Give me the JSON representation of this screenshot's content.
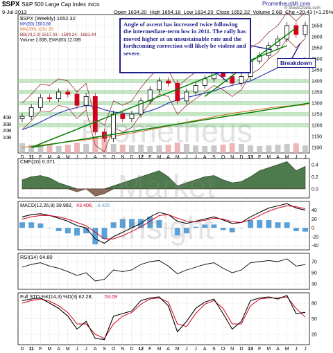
{
  "header": {
    "ticker": "$SPX",
    "name": "S&P 500 Large Cap Index",
    "exchange": "INDX",
    "date": "9-Jul-2013",
    "open_label": "Open",
    "open": "1634.20",
    "high_label": "High",
    "high": "1654.18",
    "low_label": "Low",
    "low": "1634.20",
    "close_label": "Close",
    "close": "1652.32",
    "volume_label": "Volume",
    "volume": "2.6B",
    "chg_label": "Chg",
    "chg": "+20.43 (+1.25%)",
    "site": "PrometheusMI.com",
    "credit": "© StockCharts.com"
  },
  "watermark": {
    "line1": "Prometheus",
    "line2": "Market",
    "line3": "Insight"
  },
  "colors": {
    "up": "#000000",
    "down": "#d0021b",
    "trend": "#008000",
    "ma50": "#1a2bb5",
    "ma200": "#d2691e",
    "bb": "#8b1a1a",
    "macd_hist": "#5aa0d8",
    "cmf_pos": "#4e7a4e",
    "cmf_neg": "#8a6a5a",
    "sto_d": "#d0021b",
    "band": "#8fd18f"
  },
  "price_panel": {
    "legend": [
      {
        "text": "$SPX (Weekly) 1652.32"
      },
      {
        "text": "MA(50) 1503.88",
        "color": "#1a2bb5"
      },
      {
        "text": "MA(200) 1291.25",
        "color": "#d2691e"
      },
      {
        "text": "BB(20,2.0) 1517.03 - 1599.24 - 1681.44",
        "color": "#8b1a1a"
      },
      {
        "text": "Volume 2.65B, EMA(60) 12.03B"
      }
    ],
    "y_ticks": [
      "1650",
      "1600",
      "1550",
      "1500",
      "1450",
      "1400",
      "1350",
      "1300",
      "1250",
      "1200",
      "1150",
      "1100"
    ],
    "vol_ticks": [
      "40B",
      "30B",
      "20B",
      "10B"
    ],
    "annotation": "Angle of ascent has increased twice following the intermediate-term low in 2011. The rally has moved higher at an unsustainable rate and the forthcoming correction will likely be violent and severe.",
    "callout": "Breakdown"
  },
  "x_axis": [
    "D",
    "11",
    "F",
    "M",
    "A",
    "M",
    "J",
    "J",
    "A",
    "S",
    "O",
    "N",
    "D",
    "12",
    "F",
    "M",
    "A",
    "M",
    "J",
    "J",
    "A",
    "S",
    "O",
    "N",
    "D",
    "13",
    "F",
    "M",
    "A",
    "M",
    "J",
    "J"
  ],
  "cmf": {
    "label": "CMF(20) 0.371",
    "ticks": [
      "0.4",
      "0.2",
      "0.0"
    ]
  },
  "macd": {
    "label_main": "MACD(12,26,9) 39.982,",
    "label_signal": "43.408,",
    "label_hist": "-3.426",
    "ticks": [
      "40",
      "20",
      "0",
      "-20",
      "-40"
    ]
  },
  "rsi": {
    "label": "RSI(14) 64.80",
    "ticks": [
      "70",
      "50",
      "30"
    ]
  },
  "sto": {
    "label_main": "Full STO %K(14,3) %D(3) 62.28,",
    "label_d": "53.09",
    "ticks": [
      "80",
      "50",
      "20"
    ]
  },
  "chart_data": {
    "type": "line",
    "title": "$SPX S&P 500 Large Cap Index INDX",
    "x": [
      "2010-12",
      "2011-01",
      "2011-02",
      "2011-03",
      "2011-04",
      "2011-05",
      "2011-06",
      "2011-07",
      "2011-08",
      "2011-09",
      "2011-10",
      "2011-11",
      "2011-12",
      "2012-01",
      "2012-02",
      "2012-03",
      "2012-04",
      "2012-05",
      "2012-06",
      "2012-07",
      "2012-08",
      "2012-09",
      "2012-10",
      "2012-11",
      "2012-12",
      "2013-01",
      "2013-02",
      "2013-03",
      "2013-04",
      "2013-05",
      "2013-06",
      "2013-07"
    ],
    "series": [
      {
        "name": "$SPX (Weekly)",
        "values": [
          1240,
          1280,
          1325,
          1320,
          1350,
          1340,
          1290,
          1330,
          1170,
          1140,
          1250,
          1230,
          1250,
          1310,
          1360,
          1400,
          1390,
          1310,
          1350,
          1380,
          1410,
          1440,
          1420,
          1390,
          1420,
          1490,
          1515,
          1560,
          1590,
          1650,
          1610,
          1652
        ]
      },
      {
        "name": "MA(50)",
        "values": [
          1180,
          1195,
          1215,
          1235,
          1255,
          1270,
          1280,
          1290,
          1285,
          1270,
          1260,
          1255,
          1250,
          1255,
          1265,
          1280,
          1300,
          1315,
          1325,
          1335,
          1345,
          1355,
          1370,
          1380,
          1390,
          1400,
          1420,
          1440,
          1460,
          1480,
          1495,
          1503.88
        ]
      },
      {
        "name": "MA(200)",
        "values": [
          1100,
          1105,
          1110,
          1115,
          1120,
          1125,
          1130,
          1135,
          1140,
          1145,
          1150,
          1158,
          1165,
          1172,
          1180,
          1188,
          1196,
          1205,
          1214,
          1222,
          1230,
          1238,
          1246,
          1254,
          1260,
          1266,
          1272,
          1278,
          1283,
          1287,
          1290,
          1291.25
        ]
      }
    ],
    "ylim": [
      1075,
      1700
    ],
    "indicators": {
      "cmf": [
        0.15,
        0.2,
        0.22,
        0.18,
        0.1,
        0.05,
        -0.05,
        0.0,
        -0.12,
        -0.08,
        0.05,
        0.1,
        0.15,
        0.2,
        0.25,
        0.3,
        0.2,
        0.05,
        0.1,
        0.15,
        0.2,
        0.22,
        0.15,
        0.1,
        0.12,
        0.2,
        0.3,
        0.35,
        0.4,
        0.45,
        0.3,
        0.371
      ],
      "macd": [
        25,
        30,
        32,
        28,
        22,
        15,
        5,
        0,
        -25,
        -35,
        -20,
        -10,
        0,
        10,
        25,
        35,
        30,
        15,
        10,
        15,
        20,
        25,
        18,
        10,
        12,
        25,
        35,
        45,
        50,
        55,
        45,
        39.982
      ],
      "macd_signal": [
        20,
        25,
        28,
        28,
        25,
        20,
        12,
        5,
        -10,
        -25,
        -25,
        -18,
        -8,
        2,
        15,
        28,
        30,
        22,
        15,
        14,
        17,
        22,
        20,
        14,
        12,
        18,
        28,
        38,
        45,
        50,
        48,
        43.408
      ],
      "rsi": [
        60,
        65,
        68,
        62,
        58,
        52,
        45,
        50,
        35,
        38,
        55,
        52,
        55,
        65,
        70,
        72,
        62,
        48,
        55,
        60,
        65,
        68,
        58,
        50,
        55,
        68,
        70,
        72,
        70,
        75,
        62,
        64.8
      ],
      "sto_k": [
        85,
        88,
        90,
        80,
        70,
        55,
        30,
        45,
        12,
        10,
        55,
        60,
        65,
        85,
        90,
        92,
        75,
        25,
        45,
        70,
        82,
        88,
        60,
        30,
        45,
        85,
        90,
        92,
        88,
        95,
        60,
        62.28
      ],
      "sto_d": [
        80,
        85,
        88,
        84,
        75,
        62,
        40,
        40,
        20,
        12,
        40,
        55,
        62,
        78,
        88,
        90,
        82,
        40,
        35,
        60,
        78,
        85,
        70,
        40,
        40,
        75,
        88,
        90,
        90,
        92,
        70,
        53.09
      ]
    },
    "ylabel": ""
  }
}
